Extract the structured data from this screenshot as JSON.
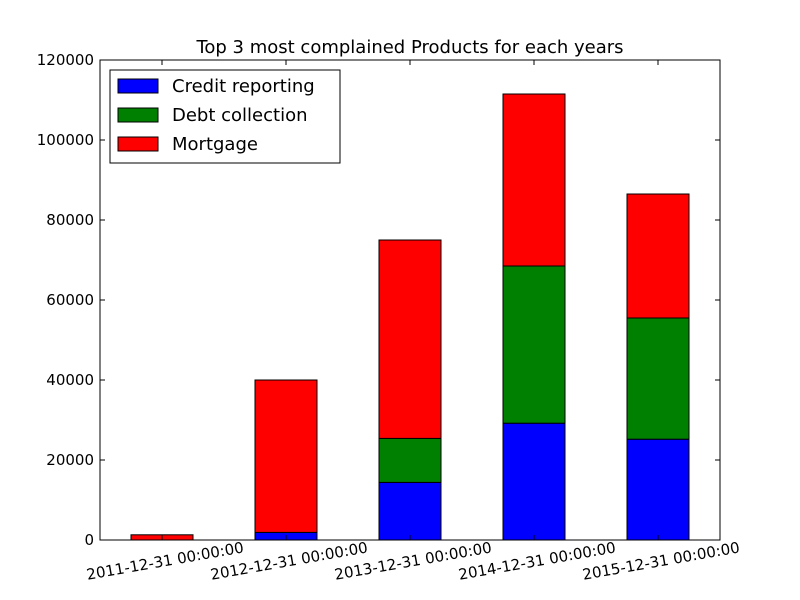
{
  "chart_data": {
    "type": "bar",
    "stacked": true,
    "title": "Top 3 most complained Products for each years",
    "xlabel": "",
    "ylabel": "",
    "categories": [
      "2011-12-31 00:00:00",
      "2012-12-31 00:00:00",
      "2013-12-31 00:00:00",
      "2014-12-31 00:00:00",
      "2015-12-31 00:00:00"
    ],
    "series": [
      {
        "name": "Credit reporting",
        "color": "#0000ff",
        "values": [
          0,
          1900,
          14400,
          29200,
          25200
        ]
      },
      {
        "name": "Debt collection",
        "color": "#008000",
        "values": [
          0,
          0,
          11000,
          39300,
          30300
        ]
      },
      {
        "name": "Mortgage",
        "color": "#ff0000",
        "values": [
          1300,
          38100,
          49600,
          43000,
          31000
        ]
      }
    ],
    "ylim": [
      0,
      120000
    ],
    "yticks": [
      0,
      20000,
      40000,
      60000,
      80000,
      100000,
      120000
    ],
    "grid": false,
    "legend_position": "top-left"
  }
}
